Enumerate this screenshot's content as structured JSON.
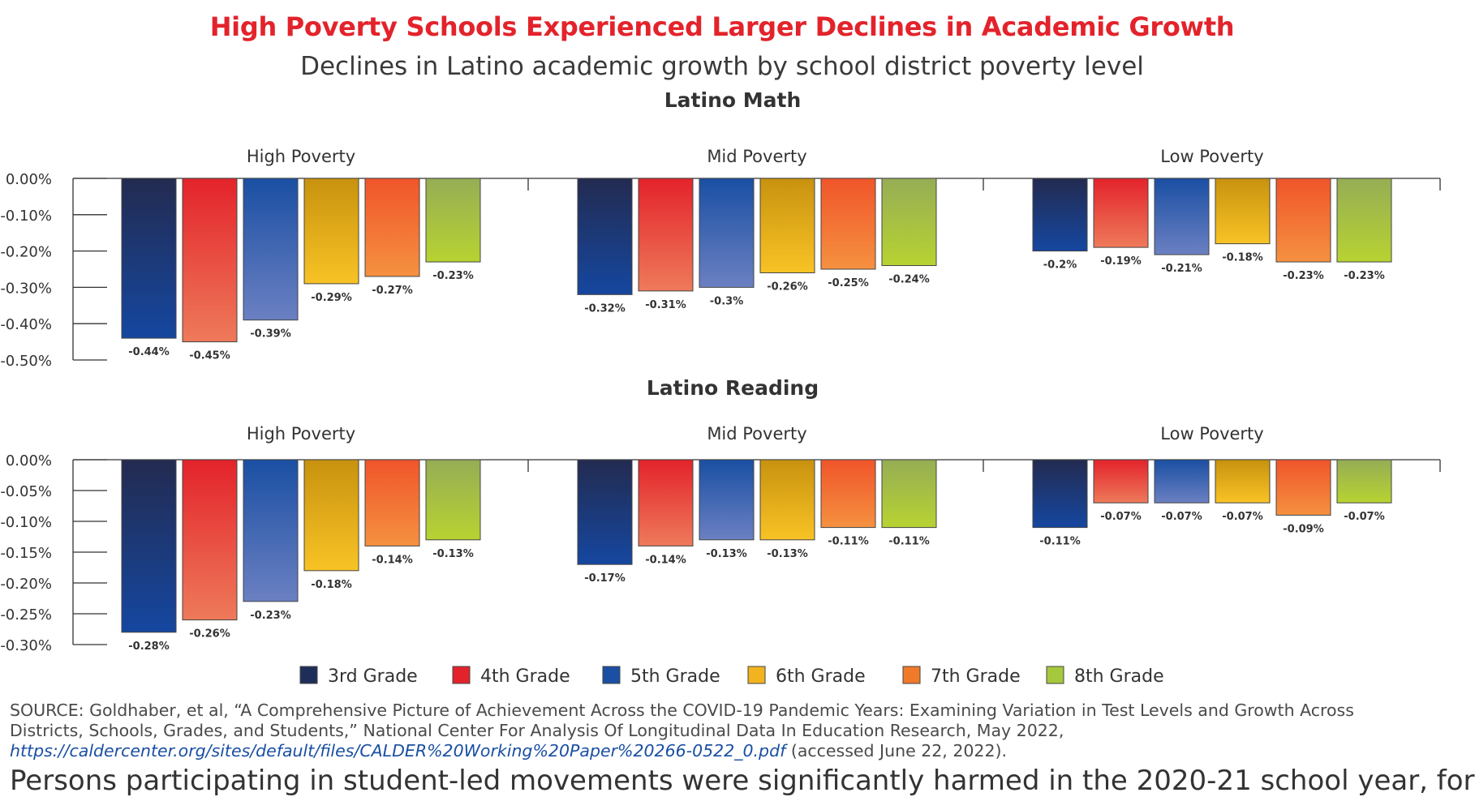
{
  "title": "High Poverty Schools Experienced Larger Declines in Academic Growth",
  "subtitle": "Declines in Latino academic growth by school district poverty level",
  "colors": {
    "title": "#e3232b",
    "grades": [
      "#1f2d5a",
      "#e3232b",
      "#1a4fa3",
      "#f2b320",
      "#f07a2a",
      "#a6c83c"
    ]
  },
  "legend": [
    "3rd Grade",
    "4th Grade",
    "5th Grade",
    "6th Grade",
    "7th Grade",
    "8th Grade"
  ],
  "chart_data": [
    {
      "type": "bar",
      "title": "Latino Math",
      "groups": [
        "High Poverty",
        "Mid Poverty",
        "Low Poverty"
      ],
      "categories": [
        "3rd Grade",
        "4th Grade",
        "5th Grade",
        "6th Grade",
        "7th Grade",
        "8th Grade"
      ],
      "ylim": [
        -0.5,
        0
      ],
      "yticks": [
        "0.00%",
        "-0.10%",
        "-0.20%",
        "-0.30%",
        "-0.40%",
        "-0.50%"
      ],
      "values": [
        [
          -0.44,
          -0.45,
          -0.39,
          -0.29,
          -0.27,
          -0.23
        ],
        [
          -0.32,
          -0.31,
          -0.3,
          -0.26,
          -0.25,
          -0.24
        ],
        [
          -0.2,
          -0.19,
          -0.21,
          -0.18,
          -0.23,
          -0.23
        ]
      ],
      "labels": [
        [
          "-0.44%",
          "-0.45%",
          "-0.39%",
          "-0.29%",
          "-0.27%",
          "-0.23%"
        ],
        [
          "-0.32%",
          "-0.31%",
          "-0.3%",
          "-0.26%",
          "-0.25%",
          "-0.24%"
        ],
        [
          "-0.2%",
          "-0.19%",
          "-0.21%",
          "-0.18%",
          "-0.23%",
          "-0.23%"
        ]
      ]
    },
    {
      "type": "bar",
      "title": "Latino Reading",
      "groups": [
        "High Poverty",
        "Mid Poverty",
        "Low Poverty"
      ],
      "categories": [
        "3rd Grade",
        "4th Grade",
        "5th Grade",
        "6th Grade",
        "7th Grade",
        "8th Grade"
      ],
      "ylim": [
        -0.3,
        0
      ],
      "yticks": [
        "0.00%",
        "-0.05%",
        "-0.10%",
        "-0.15%",
        "-0.20%",
        "-0.25%",
        "-0.30%"
      ],
      "values": [
        [
          -0.28,
          -0.26,
          -0.23,
          -0.18,
          -0.14,
          -0.13
        ],
        [
          -0.17,
          -0.14,
          -0.13,
          -0.13,
          -0.11,
          -0.11
        ],
        [
          -0.11,
          -0.07,
          -0.07,
          -0.07,
          -0.09,
          -0.07
        ]
      ],
      "labels": [
        [
          "-0.28%",
          "-0.26%",
          "-0.23%",
          "-0.18%",
          "-0.14%",
          "-0.13%"
        ],
        [
          "-0.17%",
          "-0.14%",
          "-0.13%",
          "-0.13%",
          "-0.11%",
          "-0.11%"
        ],
        [
          "-0.11%",
          "-0.07%",
          "-0.07%",
          "-0.07%",
          "-0.09%",
          "-0.07%"
        ]
      ]
    }
  ],
  "source": {
    "prefix": "SOURCE: Goldhaber, et al, “A Comprehensive Picture of Achievement Across the COVID-19 Pandemic Years: Examining Variation in Test Levels and Growth Across Districts, Schools, Grades, and Students,” National Center For Analysis Of Longitudinal Data In Education Research, May 2022, ",
    "link": "https://caldercenter.org/sites/default/files/CALDER%20Working%20Paper%20266-0522_0.pdf",
    "suffix": " (accessed June 22, 2022)."
  },
  "cutoff_text": "Persons participating in student-led movements were significantly harmed in the 2020-21 school year, for"
}
